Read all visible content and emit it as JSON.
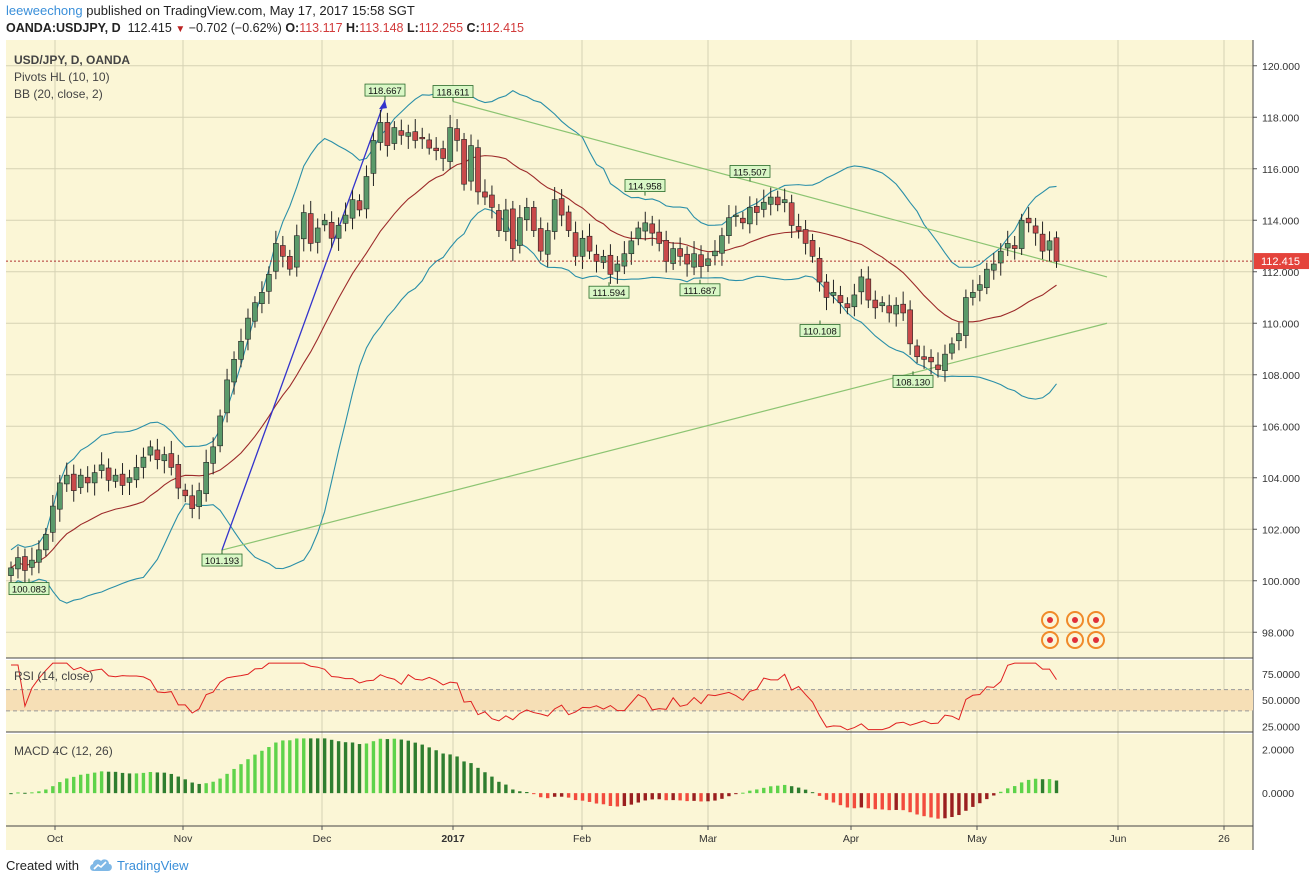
{
  "header": {
    "author": "leeweechong",
    "published_text": "published on TradingView.com, May 17, 2017 15:58 SGT",
    "symbol": "OANDA:USDJPY, D",
    "last": "112.415",
    "change": "−0.702 (−0.62%)",
    "open_label": "O:",
    "open": "113.117",
    "high_label": "H:",
    "high": "113.148",
    "low_label": "L:",
    "low": "112.255",
    "close_label": "C:",
    "close": "112.415"
  },
  "legend": {
    "main": "USD/JPY, D, OANDA",
    "pivots": "Pivots HL (10, 10)",
    "bb": "BB (20, close, 2)",
    "rsi": "RSI (14, close)",
    "macd": "MACD 4C (12, 26)"
  },
  "footer": {
    "created": "Created with",
    "brand": "TradingView"
  },
  "colors": {
    "background": "#fbf6d6",
    "up": "#5a9a6a",
    "down": "#c94a4a",
    "bb_band": "#2a8fa8",
    "bb_basis": "#9c2a2a",
    "trend": "#8cc472",
    "impulse": "#3333cc",
    "rsi": "#e02020",
    "macd_up_strong": "#5ed34a",
    "macd_up_weak": "#2f7e2f",
    "macd_down_strong": "#f24b3d",
    "macd_down_weak": "#9a1f1f",
    "price_tag": "#e4433b"
  },
  "chart_data": [
    {
      "type": "candlestick",
      "title": "USD/JPY, D, OANDA",
      "y_ticks": [
        98,
        100,
        102,
        104,
        106,
        108,
        110,
        112,
        114,
        116,
        118,
        120
      ],
      "y_tick_labels": [
        "98.000",
        "100.000",
        "102.000",
        "104.000",
        "106.000",
        "108.000",
        "110.000",
        "112.000",
        "114.000",
        "116.000",
        "118.000",
        "120.000"
      ],
      "ylim": [
        97,
        121
      ],
      "x_tick_labels": [
        "Oct",
        "Nov",
        "Dec",
        "2017",
        "Feb",
        "Mar",
        "Apr",
        "May",
        "Jun",
        "26"
      ],
      "last_price_label": "112.415",
      "last_price": 112.415,
      "pivot_labels": [
        {
          "text": "100.083",
          "value": 100.083,
          "kind": "low"
        },
        {
          "text": "101.193",
          "value": 101.193,
          "kind": "low"
        },
        {
          "text": "118.667",
          "value": 118.667,
          "kind": "high"
        },
        {
          "text": "118.611",
          "value": 118.611,
          "kind": "high"
        },
        {
          "text": "114.958",
          "value": 114.958,
          "kind": "high"
        },
        {
          "text": "111.594",
          "value": 111.594,
          "kind": "low"
        },
        {
          "text": "111.687",
          "value": 111.687,
          "kind": "low"
        },
        {
          "text": "115.507",
          "value": 115.507,
          "kind": "high"
        },
        {
          "text": "110.108",
          "value": 110.108,
          "kind": "low"
        },
        {
          "text": "108.130",
          "value": 108.13,
          "kind": "low"
        }
      ],
      "closes": [
        100.5,
        100.9,
        100.4,
        100.8,
        101.2,
        101.8,
        102.9,
        103.8,
        104.1,
        103.5,
        104.1,
        103.8,
        104.2,
        104.5,
        103.9,
        104.1,
        103.7,
        104.0,
        104.4,
        104.8,
        105.2,
        104.7,
        104.9,
        104.4,
        103.6,
        103.3,
        102.8,
        103.5,
        104.6,
        105.2,
        106.4,
        107.8,
        108.6,
        109.3,
        110.2,
        110.8,
        111.2,
        111.9,
        113.1,
        112.6,
        112.1,
        113.4,
        114.3,
        113.1,
        113.7,
        114.0,
        113.3,
        113.8,
        114.2,
        114.8,
        114.4,
        115.7,
        117.1,
        117.8,
        116.9,
        117.6,
        117.3,
        117.4,
        117.1,
        117.2,
        116.8,
        116.7,
        116.4,
        117.6,
        117.1,
        115.4,
        116.9,
        115.1,
        114.9,
        114.5,
        113.6,
        114.4,
        112.9,
        114.1,
        114.5,
        113.6,
        112.8,
        113.6,
        114.8,
        114.2,
        113.6,
        112.6,
        113.3,
        112.8,
        112.4,
        112.6,
        111.9,
        112.3,
        112.7,
        113.2,
        113.7,
        113.9,
        113.5,
        113.1,
        112.4,
        112.9,
        112.6,
        112.3,
        112.7,
        112.2,
        112.5,
        112.8,
        113.4,
        114.1,
        114.2,
        113.9,
        114.5,
        114.3,
        114.7,
        114.9,
        114.6,
        114.8,
        113.8,
        113.6,
        113.1,
        112.6,
        111.6,
        111.0,
        111.2,
        110.8,
        110.6,
        111.1,
        111.8,
        110.9,
        110.6,
        110.8,
        110.4,
        110.7,
        110.4,
        109.2,
        108.7,
        108.6,
        108.5,
        108.2,
        108.8,
        109.2,
        109.6,
        111.0,
        111.2,
        111.5,
        112.1,
        112.3,
        112.8,
        113.1,
        112.9,
        114.0,
        113.9,
        113.5,
        112.8,
        113.2,
        112.4
      ]
    },
    {
      "type": "line",
      "title": "RSI (14, close)",
      "y_ticks": [
        25,
        50,
        75
      ],
      "y_tick_labels": [
        "25.0000",
        "50.0000",
        "75.0000"
      ],
      "ylim": [
        20,
        88
      ],
      "band": [
        40,
        60
      ]
    },
    {
      "type": "bar",
      "title": "MACD 4C (12, 26)",
      "y_ticks": [
        0,
        2
      ],
      "y_tick_labels": [
        "0.0000",
        "2.0000"
      ],
      "ylim": [
        -1.5,
        2.7
      ]
    }
  ]
}
